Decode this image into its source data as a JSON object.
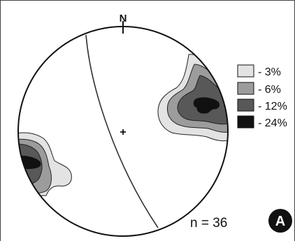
{
  "north_label": "N",
  "legend": {
    "items": [
      {
        "label": "- 3%",
        "color": "#e3e3e3"
      },
      {
        "label": "- 6%",
        "color": "#9c9c9c"
      },
      {
        "label": "- 12%",
        "color": "#585858"
      },
      {
        "label": "- 24%",
        "color": "#111111"
      }
    ]
  },
  "count_label": "n = 36",
  "panel_label": "A"
}
